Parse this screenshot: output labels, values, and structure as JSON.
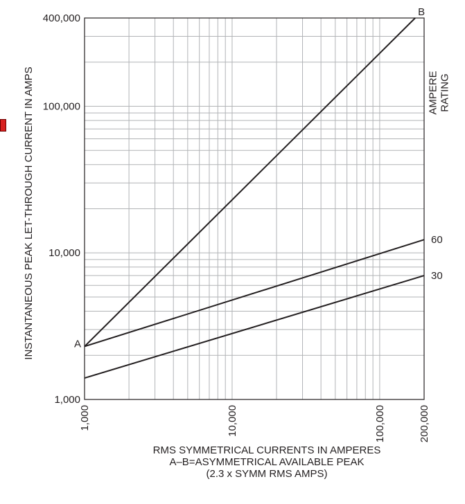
{
  "chart_data": {
    "type": "line",
    "xscale": "log",
    "yscale": "log",
    "xlim": [
      1000,
      200000
    ],
    "ylim": [
      1000,
      400000
    ],
    "x_ticks": [
      {
        "value": 1000,
        "label": "1,000"
      },
      {
        "value": 10000,
        "label": "10,000"
      },
      {
        "value": 100000,
        "label": "100,000"
      },
      {
        "value": 200000,
        "label": "200,000"
      }
    ],
    "y_ticks": [
      {
        "value": 1000,
        "label": "1,000"
      },
      {
        "value": 10000,
        "label": "10,000"
      },
      {
        "value": 100000,
        "label": "100,000"
      },
      {
        "value": 400000,
        "label": "400,000"
      }
    ],
    "ylabel": "INSTANTANEOUS PEAK LET-THROUGH CURRENT IN AMPS",
    "xlabel_lines": [
      "RMS SYMMETRICAL CURRENTS IN AMPERES",
      "A–B=ASYMMETRICAL AVAILABLE PEAK",
      "(2.3 x SYMM RMS AMPS)"
    ],
    "legend_title": "AMPERE RATING",
    "grid": true,
    "series": [
      {
        "name": "A–B",
        "x": [
          1000,
          174000
        ],
        "y": [
          2300,
          400000
        ],
        "start_label": "A",
        "end_label": "B"
      },
      {
        "name": "60",
        "x": [
          1000,
          200000
        ],
        "y": [
          2300,
          12300
        ],
        "end_label": "60"
      },
      {
        "name": "30",
        "x": [
          1000,
          200000
        ],
        "y": [
          1400,
          7000
        ],
        "end_label": "30"
      }
    ],
    "colors": {
      "line": "#231f20",
      "grid": "#b1b3b6",
      "axis": "#231f20",
      "marker": "#d7201f"
    }
  }
}
